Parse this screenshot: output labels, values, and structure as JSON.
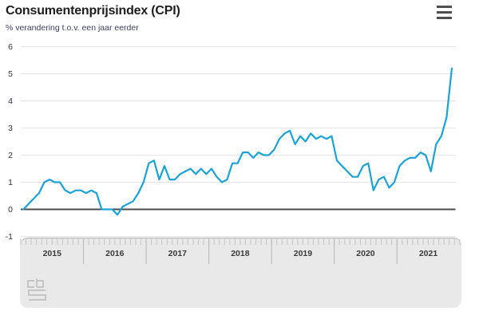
{
  "header": {
    "menu_icon": "hamburger"
  },
  "colors": {
    "accent_line": "#1aa3d4",
    "panel_bg": "#e9e9e9",
    "grid": "#e3e3e3",
    "zero_line": "#4b4b4b",
    "subtitle_text": "#3d3d60"
  },
  "chart_data": {
    "type": "line",
    "title": "Consumentenprijsindex (CPI)",
    "subtitle": "% verandering t.o.v. een jaar eerder",
    "x_start": "2015-01",
    "x_freq": "monthly",
    "x_tick_labels": [
      "2015",
      "2016",
      "2017",
      "2018",
      "2019",
      "2020",
      "2021"
    ],
    "y_ticks": [
      6,
      5,
      4,
      3,
      2,
      1,
      0,
      -1
    ],
    "ylim": [
      -1,
      6
    ],
    "grid": true,
    "legend": false,
    "series": [
      {
        "name": "CPI % verandering t.o.v. een jaar eerder",
        "color": "#1aa3d4",
        "values": [
          0.0,
          0.2,
          0.4,
          0.6,
          1.0,
          1.1,
          1.0,
          1.0,
          0.7,
          0.6,
          0.7,
          0.7,
          0.6,
          0.7,
          0.6,
          0.0,
          0.0,
          0.0,
          -0.2,
          0.1,
          0.2,
          0.3,
          0.6,
          1.0,
          1.7,
          1.8,
          1.1,
          1.6,
          1.1,
          1.1,
          1.3,
          1.4,
          1.5,
          1.3,
          1.5,
          1.3,
          1.5,
          1.2,
          1.0,
          1.1,
          1.7,
          1.7,
          2.1,
          2.1,
          1.9,
          2.1,
          2.0,
          2.0,
          2.2,
          2.6,
          2.8,
          2.9,
          2.4,
          2.7,
          2.5,
          2.8,
          2.6,
          2.7,
          2.6,
          2.7,
          1.8,
          1.6,
          1.4,
          1.2,
          1.2,
          1.6,
          1.7,
          0.7,
          1.1,
          1.2,
          0.8,
          1.0,
          1.6,
          1.8,
          1.9,
          1.9,
          2.1,
          2.0,
          1.4,
          2.4,
          2.7,
          3.4,
          5.2
        ]
      }
    ]
  }
}
